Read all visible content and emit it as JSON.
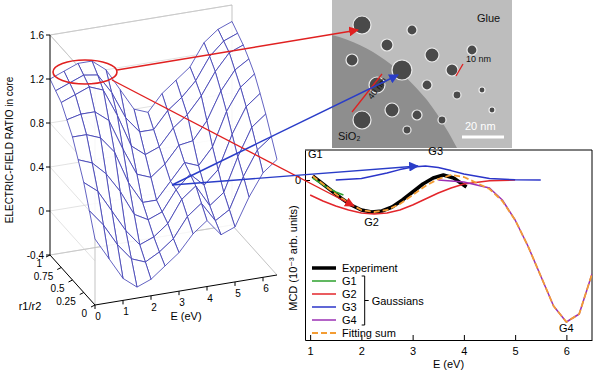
{
  "chart_data": [
    {
      "type": "surface",
      "zlabel": "ELECTRIC-FIELD RATIO in core",
      "xlabel": "E (eV)",
      "ylabel": "r1/r2",
      "x": [
        0,
        0.5,
        1,
        1.5,
        2,
        2.5,
        3,
        3.5,
        4,
        4.5,
        5,
        5.5,
        6,
        6.5
      ],
      "y": [
        0,
        0.125,
        0.25,
        0.375,
        0.5,
        0.625,
        0.75,
        0.875,
        1
      ],
      "z": [
        [
          0.2,
          0.0,
          -0.2,
          -0.3,
          -0.25,
          -0.15,
          -0.05,
          0.1,
          0.2,
          0.05,
          0.1,
          0.35,
          0.55,
          0.65
        ],
        [
          0.4,
          0.25,
          0.05,
          -0.1,
          -0.15,
          -0.08,
          0.02,
          0.2,
          0.3,
          0.12,
          0.2,
          0.48,
          0.7,
          0.8
        ],
        [
          0.6,
          0.5,
          0.3,
          0.1,
          -0.05,
          0.0,
          0.1,
          0.3,
          0.4,
          0.2,
          0.3,
          0.6,
          0.85,
          0.95
        ],
        [
          0.75,
          0.7,
          0.58,
          0.4,
          0.17,
          0.1,
          0.15,
          0.33,
          0.45,
          0.33,
          0.45,
          0.75,
          0.98,
          1.08
        ],
        [
          0.9,
          0.9,
          0.85,
          0.7,
          0.4,
          0.2,
          0.2,
          0.35,
          0.5,
          0.45,
          0.6,
          0.9,
          1.1,
          1.2
        ],
        [
          1.0,
          1.03,
          1.03,
          0.93,
          0.65,
          0.4,
          0.35,
          0.45,
          0.6,
          0.62,
          0.78,
          1.03,
          1.2,
          1.28
        ],
        [
          1.1,
          1.15,
          1.2,
          1.15,
          0.9,
          0.6,
          0.5,
          0.55,
          0.7,
          0.8,
          0.95,
          1.15,
          1.3,
          1.35
        ],
        [
          1.15,
          1.2,
          1.25,
          1.23,
          1.05,
          0.8,
          0.65,
          0.65,
          0.8,
          0.9,
          1.03,
          1.23,
          1.35,
          1.4
        ],
        [
          1.2,
          1.25,
          1.3,
          1.3,
          1.2,
          1.0,
          0.8,
          0.75,
          0.9,
          1.0,
          1.1,
          1.3,
          1.4,
          1.45
        ]
      ],
      "xlim": [
        0,
        6.5
      ],
      "xticks": [
        0,
        1,
        2,
        3,
        4,
        5,
        6
      ],
      "ylim": [
        0,
        1
      ],
      "yticks": [
        0,
        0.25,
        0.5,
        0.75,
        1
      ],
      "zlim": [
        -0.4,
        1.6
      ],
      "zticks": [
        -0.4,
        0,
        0.4,
        0.8,
        1.2,
        1.6
      ],
      "color": "#3b3bb3",
      "grid": true
    },
    {
      "type": "line",
      "xlabel": "E (eV)",
      "ylabel": "MCD (10⁻³ arb. units)",
      "xlim": [
        0.9,
        6.5
      ],
      "xticks": [
        1,
        2,
        3,
        4,
        5,
        6
      ],
      "ylim": [
        -8,
        1.5
      ],
      "yticks": [
        0
      ],
      "legend": "lower left",
      "series": [
        {
          "name": "Experiment",
          "color": "#000000",
          "line_style": "bold",
          "x": [
            1.05,
            1.2,
            1.4,
            1.6,
            1.8,
            2.0,
            2.2,
            2.4,
            2.6,
            2.8,
            3.0,
            3.2,
            3.4,
            3.6,
            3.8,
            4.05
          ],
          "values": [
            0.2,
            -0.1,
            -0.5,
            -0.9,
            -1.25,
            -1.5,
            -1.6,
            -1.55,
            -1.35,
            -1.0,
            -0.6,
            -0.2,
            0.1,
            0.25,
            0.1,
            -0.35
          ]
        },
        {
          "name": "G1",
          "color": "#2ca02c",
          "line_style": "solid",
          "group": "Gaussians",
          "x": [
            1.05,
            1.2,
            1.35,
            1.5,
            1.65
          ],
          "values": [
            0.1,
            -0.15,
            -0.4,
            -0.6,
            -0.75
          ]
        },
        {
          "name": "G2",
          "color": "#e3262b",
          "line_style": "solid",
          "group": "Gaussians",
          "x": [
            1.0,
            1.25,
            1.5,
            1.75,
            2.0,
            2.25,
            2.5,
            2.75,
            3.0,
            3.25,
            3.5,
            3.75,
            4.0,
            4.5,
            5.0
          ],
          "values": [
            -0.75,
            -1.05,
            -1.3,
            -1.5,
            -1.65,
            -1.7,
            -1.65,
            -1.5,
            -1.25,
            -0.95,
            -0.65,
            -0.4,
            -0.2,
            -0.04,
            0
          ]
        },
        {
          "name": "G3",
          "color": "#2b35c9",
          "line_style": "solid",
          "group": "Gaussians",
          "x": [
            1.5,
            2.0,
            2.5,
            2.75,
            3.0,
            3.25,
            3.5,
            3.75,
            4.0,
            4.5,
            5.0,
            5.5
          ],
          "values": [
            0,
            0.08,
            0.35,
            0.52,
            0.65,
            0.7,
            0.62,
            0.47,
            0.3,
            0.08,
            0.01,
            0
          ]
        },
        {
          "name": "G4",
          "color": "#9b30b5",
          "line_style": "solid",
          "group": "Gaussians",
          "x": [
            3.5,
            4.0,
            4.5,
            4.75,
            5.0,
            5.25,
            5.5,
            5.75,
            6.0,
            6.25,
            6.5
          ],
          "values": [
            0,
            -0.1,
            -0.4,
            -1.0,
            -2.0,
            -3.3,
            -4.8,
            -6.3,
            -7.1,
            -6.7,
            -4.7
          ]
        },
        {
          "name": "Fitting sum",
          "color": "#f39c33",
          "line_style": "dashed",
          "x": [
            1.05,
            1.25,
            1.5,
            1.75,
            2.0,
            2.25,
            2.5,
            2.75,
            3.0,
            3.25,
            3.5,
            3.75,
            4.0,
            4.25,
            4.5,
            4.75,
            5.0,
            5.25,
            5.5,
            5.75,
            6.0,
            6.25,
            6.5
          ],
          "values": [
            0.2,
            -0.2,
            -0.7,
            -1.15,
            -1.5,
            -1.6,
            -1.5,
            -1.2,
            -0.75,
            -0.3,
            0.05,
            0.25,
            0.15,
            -0.15,
            -0.45,
            -1.05,
            -2.0,
            -3.3,
            -4.8,
            -6.3,
            -7.1,
            -6.7,
            -4.7
          ]
        }
      ],
      "annotations": [
        {
          "text": "G1",
          "x": 1.1,
          "y": 1.1
        },
        {
          "text": "G2",
          "x": 2.2,
          "y": -2.3
        },
        {
          "text": "G3",
          "x": 3.45,
          "y": 1.25
        },
        {
          "text": "G4",
          "x": 6.0,
          "y": -7.6
        }
      ]
    }
  ],
  "image": {
    "type": "micrograph",
    "labels": [
      "Glue",
      "10 nm",
      "40 nm",
      "SiO₂",
      "20 nm"
    ]
  }
}
